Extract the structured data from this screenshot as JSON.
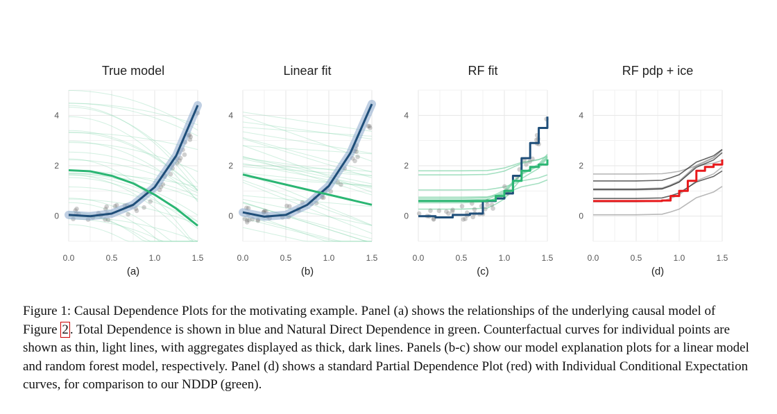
{
  "chart_data": [
    {
      "type": "line",
      "title": "True model",
      "panel_label": "(a)",
      "xlim": [
        0,
        1.5
      ],
      "ylim": [
        -1,
        5
      ],
      "xticks": [
        "0.0",
        "0.5",
        "1.0",
        "1.5"
      ],
      "yticks": [
        "0",
        "2",
        "4"
      ],
      "grid": true,
      "series": [
        {
          "role": "total-dependence",
          "color": "#1f4e79",
          "x": [
            0,
            0.25,
            0.5,
            0.75,
            1.0,
            1.25,
            1.5
          ],
          "y": [
            0.05,
            0.0,
            0.1,
            0.45,
            1.15,
            2.4,
            4.4
          ]
        },
        {
          "role": "natural-direct-dependence",
          "color": "#2bb673",
          "x": [
            0,
            0.25,
            0.5,
            0.75,
            1.0,
            1.25,
            1.5
          ],
          "y": [
            1.82,
            1.78,
            1.6,
            1.3,
            0.85,
            0.3,
            -0.38
          ]
        }
      ]
    },
    {
      "type": "line",
      "title": "Linear fit",
      "panel_label": "(b)",
      "xlim": [
        0,
        1.5
      ],
      "ylim": [
        -1,
        5
      ],
      "xticks": [
        "0.0",
        "0.5",
        "1.0",
        "1.5"
      ],
      "yticks": [
        "0",
        "2",
        "4"
      ],
      "grid": true,
      "series": [
        {
          "role": "total-dependence",
          "color": "#1f4e79",
          "x": [
            0,
            0.25,
            0.5,
            0.75,
            1.0,
            1.25,
            1.5
          ],
          "y": [
            0.15,
            -0.02,
            0.05,
            0.45,
            1.2,
            2.5,
            4.45
          ]
        },
        {
          "role": "natural-direct-dependence",
          "color": "#2bb673",
          "x": [
            0,
            1.5
          ],
          "y": [
            1.65,
            0.45
          ]
        }
      ]
    },
    {
      "type": "line",
      "title": "RF fit",
      "panel_label": "(c)",
      "xlim": [
        0,
        1.5
      ],
      "ylim": [
        -1,
        5
      ],
      "xticks": [
        "0.0",
        "0.5",
        "1.0",
        "1.5"
      ],
      "yticks": [
        "0",
        "2",
        "4"
      ],
      "grid": true,
      "series": [
        {
          "role": "total-dependence",
          "color": "#1f4e79",
          "x": [
            0,
            0.2,
            0.4,
            0.6,
            0.75,
            0.9,
            1.0,
            1.1,
            1.2,
            1.3,
            1.4,
            1.5
          ],
          "y": [
            0.0,
            -0.05,
            0.05,
            0.1,
            0.6,
            0.7,
            0.9,
            1.6,
            2.3,
            2.9,
            3.5,
            3.95
          ]
        },
        {
          "role": "natural-direct-dependence",
          "color": "#2bb673",
          "x": [
            0,
            0.5,
            0.8,
            0.9,
            1.0,
            1.1,
            1.2,
            1.3,
            1.4,
            1.5
          ],
          "y": [
            0.6,
            0.6,
            0.62,
            0.8,
            1.0,
            1.4,
            1.8,
            1.95,
            2.05,
            2.25
          ]
        }
      ]
    },
    {
      "type": "line",
      "title": "RF pdp + ice",
      "panel_label": "(d)",
      "xlim": [
        0,
        1.5
      ],
      "ylim": [
        -1,
        5
      ],
      "xticks": [
        "0.0",
        "0.5",
        "1.0",
        "1.5"
      ],
      "yticks": [
        "0",
        "2",
        "4"
      ],
      "grid": true,
      "series": [
        {
          "role": "partial-dependence",
          "color": "#e8191b",
          "x": [
            0,
            0.5,
            0.8,
            0.9,
            1.0,
            1.1,
            1.2,
            1.3,
            1.4,
            1.5
          ],
          "y": [
            0.6,
            0.6,
            0.62,
            0.8,
            1.0,
            1.4,
            1.8,
            1.95,
            2.05,
            2.25
          ]
        }
      ]
    }
  ],
  "caption": {
    "before_ref": "Figure 1: Causal Dependence Plots for the motivating example. Panel (a) shows the relationships of the underlying causal model of Figure ",
    "ref": "2",
    "after_ref": ". Total Dependence is shown in blue and Natural Direct Dependence in green. Counterfactual curves for individual points are shown as thin, light lines, with aggregates displayed as thick, dark lines. Panels (b-c) show our model explanation plots for a linear model and random forest model, respectively. Panel (d) shows a standard Partial Dependence Plot (red) with Individual Conditional Expectation curves, for comparison to our NDDP (green)."
  }
}
